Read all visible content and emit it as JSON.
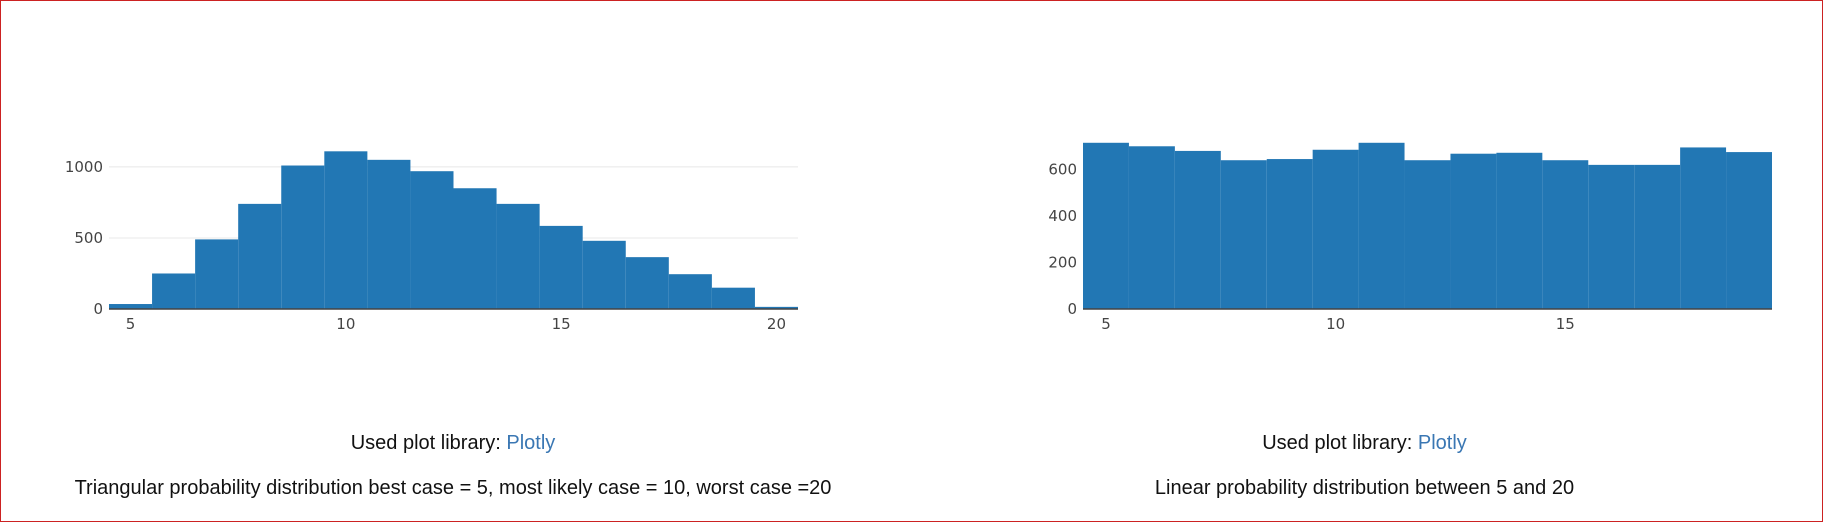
{
  "colors": {
    "bar": "#2277b4",
    "grid": "#e8e8e8",
    "text": "#444444",
    "link": "#3a77b3",
    "frame": "#cc2222"
  },
  "left": {
    "library_prefix": "Used plot library:",
    "library_link": "Plotly",
    "description": "Triangular probability distribution best case = 5, most likely case = 10, worst case =20"
  },
  "right": {
    "library_prefix": "Used plot library:",
    "library_link": "Plotly",
    "description": "Linear probability distribution between 5 and 20"
  },
  "chart_data": [
    {
      "type": "bar",
      "subtype": "histogram",
      "x_start": 4.5,
      "bin_width": 1,
      "values": [
        35,
        250,
        490,
        740,
        1010,
        1110,
        1050,
        970,
        850,
        740,
        585,
        480,
        365,
        245,
        150,
        15
      ],
      "xlim": [
        4.5,
        20.5
      ],
      "ylim": [
        0,
        1260
      ],
      "x_ticks": [
        5,
        10,
        15,
        20
      ],
      "y_ticks": [
        0,
        500,
        1000
      ],
      "grid": true
    },
    {
      "type": "bar",
      "subtype": "histogram",
      "x_start": 4.5,
      "bin_width": 1,
      "values": [
        715,
        700,
        680,
        640,
        645,
        685,
        715,
        640,
        668,
        672,
        640,
        620,
        620,
        695,
        675
      ],
      "xlim": [
        4.5,
        19.5
      ],
      "ylim": [
        0,
        770
      ],
      "x_ticks": [
        5,
        10,
        15
      ],
      "y_ticks": [
        0,
        200,
        400,
        600
      ],
      "grid": false
    }
  ]
}
